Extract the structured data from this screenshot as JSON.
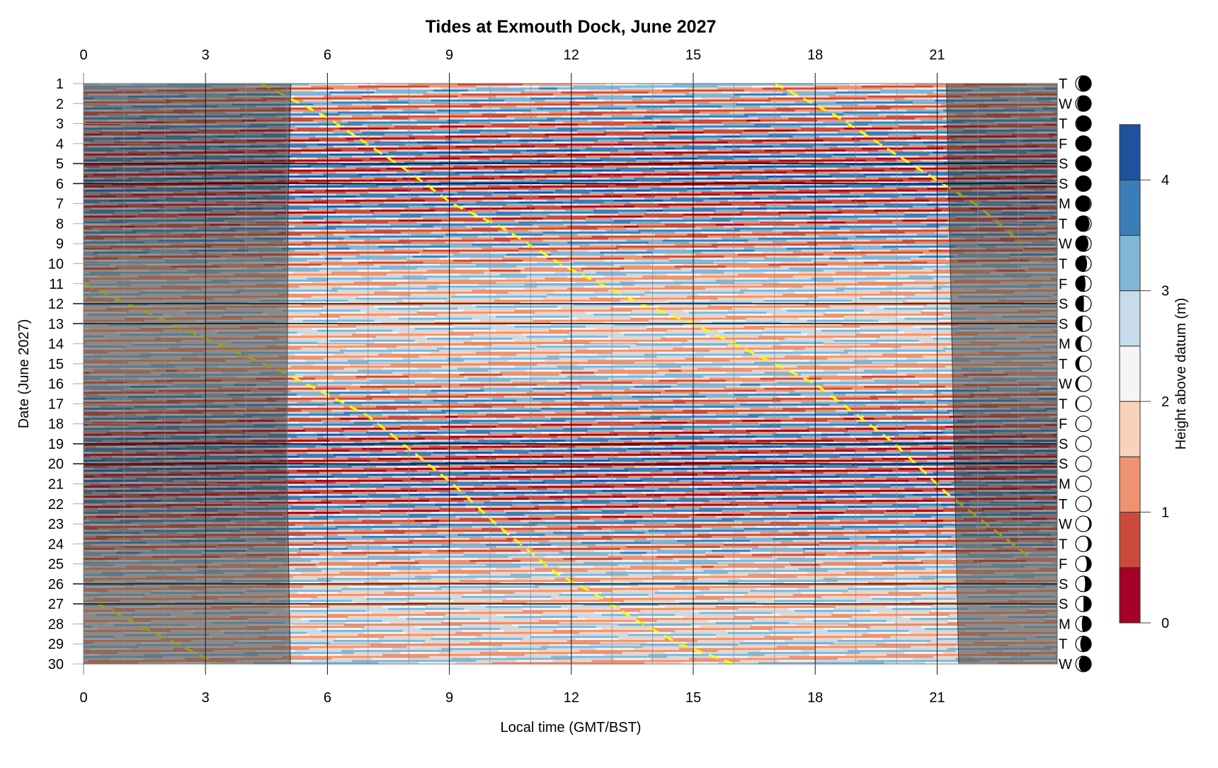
{
  "chart_data": {
    "type": "heatmap",
    "subtype": "filled-contour",
    "title": "Tides at Exmouth Dock, June 2027",
    "xlabel": "Local time (GMT/BST)",
    "ylabel": "Date (June 2027)",
    "colorbar_label": "Height above datum (m)",
    "xlim": [
      0,
      23.95
    ],
    "ylim": [
      1,
      30
    ],
    "x_ticks": [
      "0",
      "3",
      "6",
      "9",
      "12",
      "15",
      "18",
      "21"
    ],
    "x_tick_values": [
      0,
      3,
      6,
      9,
      12,
      15,
      18,
      21
    ],
    "days": [
      "1",
      "2",
      "3",
      "4",
      "5",
      "6",
      "7",
      "8",
      "9",
      "10",
      "11",
      "12",
      "13",
      "14",
      "15",
      "16",
      "17",
      "18",
      "19",
      "20",
      "21",
      "22",
      "23",
      "24",
      "25",
      "26",
      "27",
      "28",
      "29",
      "30"
    ],
    "weekdays": [
      "T",
      "W",
      "T",
      "F",
      "S",
      "S",
      "M",
      "T",
      "W",
      "T",
      "F",
      "S",
      "S",
      "M",
      "T",
      "W",
      "T",
      "F",
      "S",
      "S",
      "M",
      "T",
      "W",
      "T",
      "F",
      "S",
      "S",
      "M",
      "T",
      "W"
    ],
    "moon_phase_fraction": [
      0.868,
      0.902,
      0.936,
      0.97,
      0.003,
      0.037,
      0.071,
      0.105,
      0.139,
      0.173,
      0.207,
      0.241,
      0.274,
      0.308,
      0.342,
      0.376,
      0.41,
      0.444,
      0.478,
      0.512,
      0.545,
      0.579,
      0.613,
      0.647,
      0.681,
      0.715,
      0.749,
      0.783,
      0.816,
      0.85
    ],
    "levels": [
      0,
      0.5,
      1,
      1.5,
      2,
      2.5,
      3,
      3.5,
      4,
      4.5
    ],
    "level_colors": [
      "#a50026",
      "#cc4a3c",
      "#ef9270",
      "#fad2bc",
      "#f5f5f5",
      "#c7dcea",
      "#80b6d6",
      "#3a7eb8",
      "#1f519f"
    ],
    "colorbar_ticks": [
      "0",
      "1",
      "2",
      "3",
      "4"
    ],
    "colorbar_tick_values": [
      0,
      1,
      2,
      3,
      4
    ],
    "tide_model": {
      "mean_level_m": 2.18,
      "first_high_water_hour_day1": 5.0,
      "tidal_period_hours": 12.42,
      "daily_half_range_m": [
        1.27,
        1.5,
        1.72,
        1.89,
        1.99,
        1.99,
        1.89,
        1.72,
        1.5,
        1.27,
        1.07,
        0.94,
        0.9,
        0.96,
        1.11,
        1.32,
        1.55,
        1.76,
        1.92,
        2.0,
        1.97,
        1.86,
        1.67,
        1.44,
        1.21,
        1.03,
        0.92,
        0.91,
        0.99,
        1.16
      ]
    },
    "night_shading": {
      "sunrise_hour": [
        [
          1,
          5.1
        ],
        [
          7,
          5.03
        ],
        [
          20,
          5.0
        ],
        [
          30,
          5.09
        ]
      ],
      "sunset_hour": [
        [
          1,
          21.23
        ],
        [
          30,
          21.53
        ]
      ]
    },
    "dashed_lines": [
      [
        [
          4.37,
          1
        ],
        [
          6,
          2.7
        ],
        [
          8,
          5.4
        ],
        [
          9.07,
          7
        ],
        [
          10.3,
          8.2
        ],
        [
          11.8,
          10.1
        ],
        [
          13.7,
          12
        ],
        [
          15,
          13
        ],
        [
          16.5,
          14.5
        ],
        [
          18,
          16
        ],
        [
          19.9,
          18.9
        ],
        [
          21.25,
          21.5
        ],
        [
          23.3,
          24.7
        ]
      ],
      [
        [
          17,
          1
        ],
        [
          18.5,
          2.6
        ],
        [
          20.5,
          5.2
        ],
        [
          22,
          7.1
        ],
        [
          23.1,
          9
        ]
      ],
      [
        [
          0,
          11
        ],
        [
          2.5,
          13.3
        ],
        [
          5,
          15.5
        ],
        [
          7,
          17.6
        ],
        [
          9.08,
          21
        ],
        [
          10.14,
          23
        ],
        [
          11.65,
          25.5
        ],
        [
          12.5,
          26.4
        ],
        [
          13.5,
          27.7
        ],
        [
          14.65,
          29
        ],
        [
          16,
          30
        ]
      ],
      [
        [
          0.35,
          27
        ],
        [
          1.8,
          28.5
        ],
        [
          3.3,
          30
        ]
      ]
    ],
    "dashed_line_color": "#ffff00",
    "weekend_gridline_days": [
      5,
      6,
      12,
      13,
      19,
      20,
      26,
      27
    ]
  }
}
